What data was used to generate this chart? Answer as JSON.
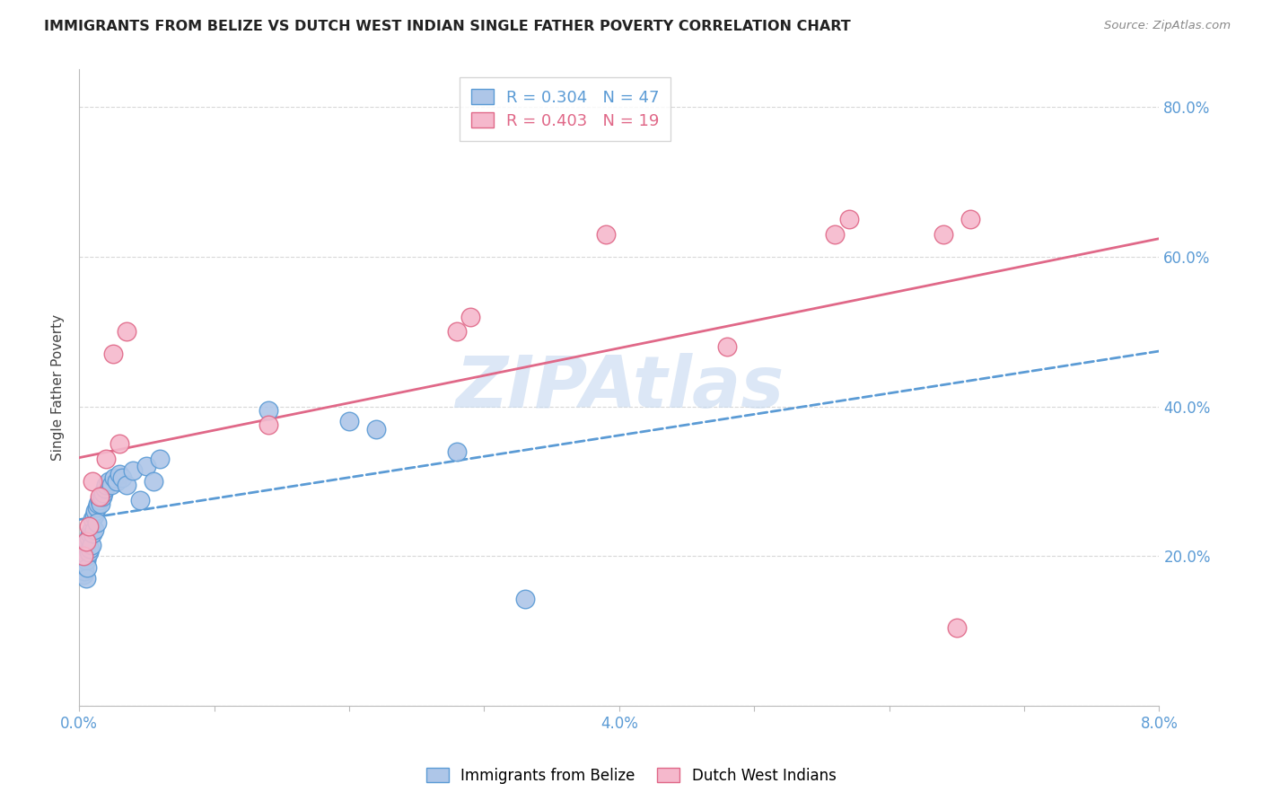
{
  "title": "IMMIGRANTS FROM BELIZE VS DUTCH WEST INDIAN SINGLE FATHER POVERTY CORRELATION CHART",
  "source": "Source: ZipAtlas.com",
  "ylabel": "Single Father Poverty",
  "xlim": [
    0.0,
    0.08
  ],
  "ylim": [
    0.0,
    0.85
  ],
  "ytick_positions": [
    0.0,
    0.2,
    0.4,
    0.6,
    0.8
  ],
  "yticklabels": [
    "",
    "20.0%",
    "40.0%",
    "60.0%",
    "80.0%"
  ],
  "belize_color": "#aec6e8",
  "belize_edge_color": "#5b9bd5",
  "dutch_color": "#f5b8cc",
  "dutch_edge_color": "#e06888",
  "belize_R": 0.304,
  "belize_N": 47,
  "dutch_R": 0.403,
  "dutch_N": 19,
  "belize_line_color": "#5b9bd5",
  "dutch_line_color": "#e06888",
  "belize_x": [
    0.0003,
    0.0003,
    0.0004,
    0.0004,
    0.0005,
    0.0005,
    0.0005,
    0.0006,
    0.0006,
    0.0006,
    0.0007,
    0.0007,
    0.0008,
    0.0008,
    0.0009,
    0.0009,
    0.001,
    0.001,
    0.0011,
    0.0011,
    0.0012,
    0.0013,
    0.0013,
    0.0014,
    0.0015,
    0.0016,
    0.0017,
    0.0018,
    0.0019,
    0.002,
    0.0022,
    0.0024,
    0.0026,
    0.0028,
    0.003,
    0.0032,
    0.0035,
    0.004,
    0.0045,
    0.005,
    0.0055,
    0.006,
    0.014,
    0.02,
    0.022,
    0.028,
    0.033
  ],
  "belize_y": [
    0.195,
    0.175,
    0.2,
    0.18,
    0.215,
    0.195,
    0.17,
    0.22,
    0.2,
    0.185,
    0.225,
    0.205,
    0.23,
    0.21,
    0.235,
    0.215,
    0.25,
    0.23,
    0.255,
    0.235,
    0.26,
    0.265,
    0.245,
    0.27,
    0.275,
    0.27,
    0.28,
    0.285,
    0.29,
    0.295,
    0.3,
    0.295,
    0.305,
    0.3,
    0.31,
    0.305,
    0.295,
    0.315,
    0.275,
    0.32,
    0.3,
    0.33,
    0.395,
    0.38,
    0.37,
    0.34,
    0.143
  ],
  "dutch_x": [
    0.0003,
    0.0005,
    0.0007,
    0.001,
    0.0015,
    0.002,
    0.0025,
    0.003,
    0.0035,
    0.014,
    0.028,
    0.029,
    0.039,
    0.048,
    0.056,
    0.057,
    0.064,
    0.065,
    0.066
  ],
  "dutch_y": [
    0.2,
    0.22,
    0.24,
    0.3,
    0.28,
    0.33,
    0.47,
    0.35,
    0.5,
    0.375,
    0.5,
    0.52,
    0.63,
    0.48,
    0.63,
    0.65,
    0.63,
    0.105,
    0.65
  ],
  "watermark_text": "ZIPAtlas",
  "watermark_color": "#c5d8f0",
  "watermark_alpha": 0.6
}
